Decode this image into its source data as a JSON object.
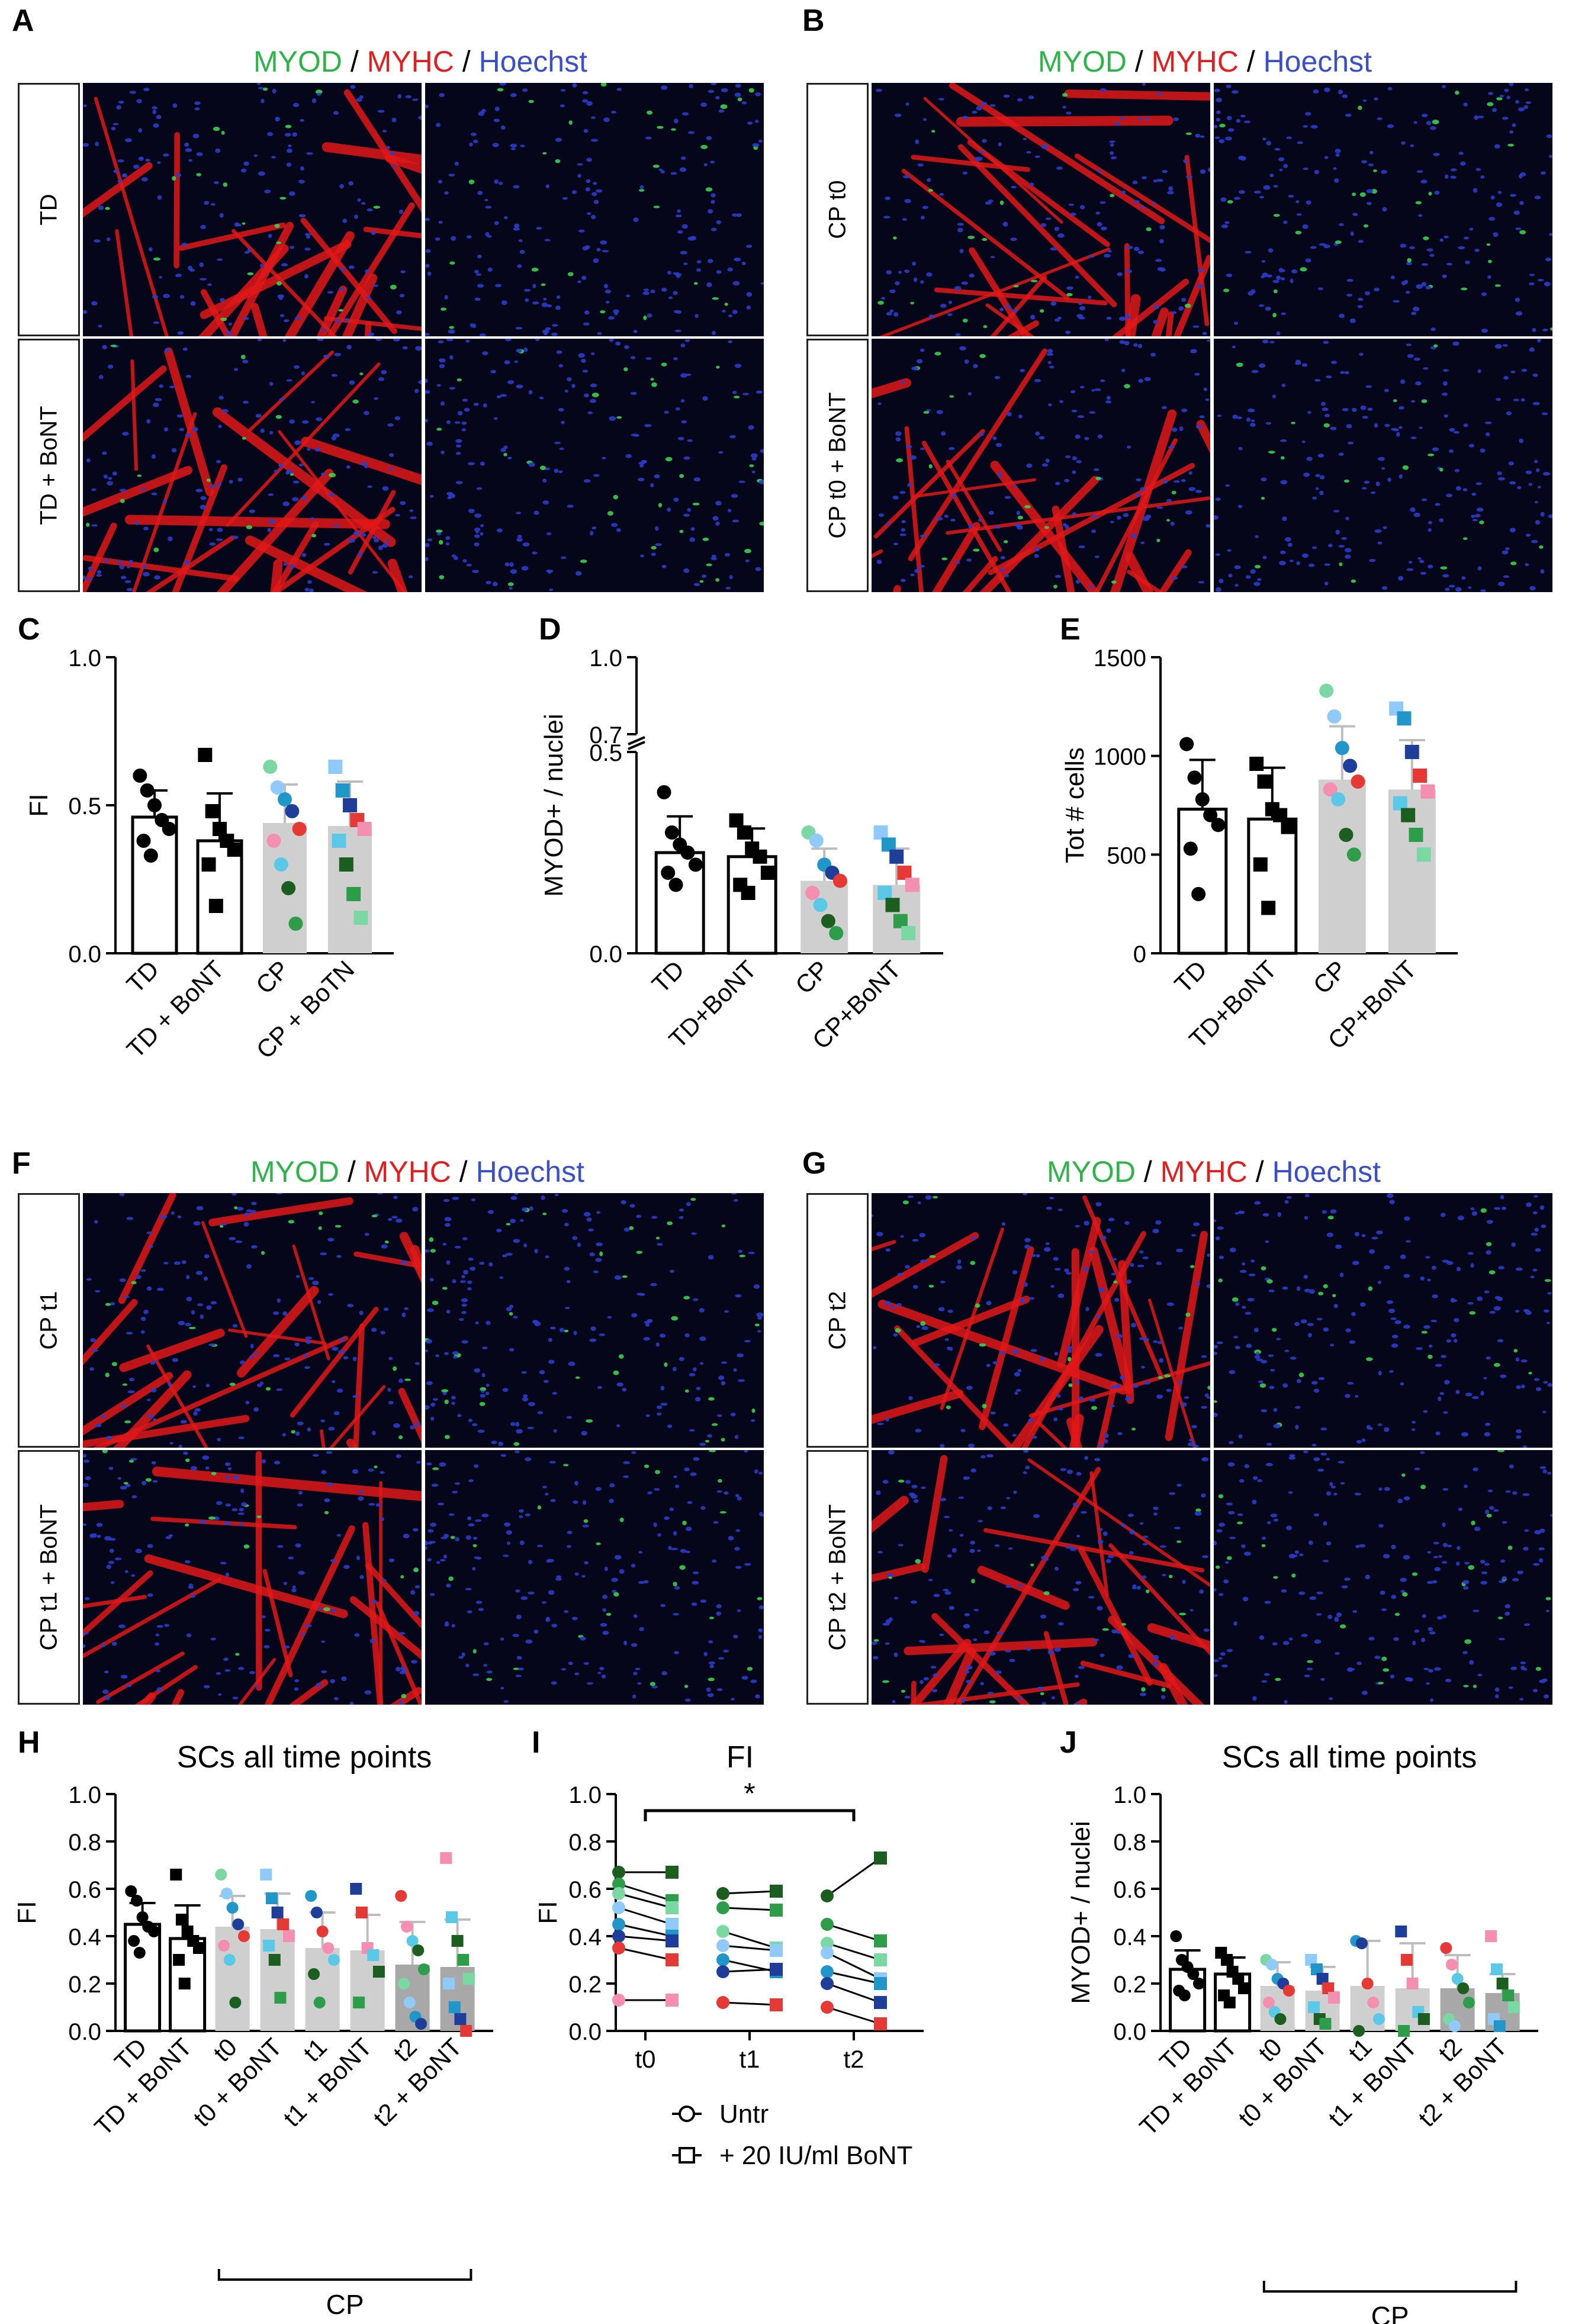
{
  "stain": {
    "part1": "MYOD",
    "sep1": " / ",
    "part2": "MYHC",
    "sep2": " / ",
    "part3": "Hoechst"
  },
  "panels": {
    "A": {
      "letter": "A",
      "rows": [
        "TD",
        "TD + BoNT"
      ]
    },
    "B": {
      "letter": "B",
      "rows": [
        "CP t0",
        "CP t0 + BoNT"
      ]
    },
    "F": {
      "letter": "F",
      "rows": [
        "CP t1",
        "CP t1 + BoNT"
      ]
    },
    "G": {
      "letter": "G",
      "rows": [
        "CP t2",
        "CP t2 + BoNT"
      ]
    }
  },
  "colors": {
    "black": "#000000",
    "grey": "#cfcfcf",
    "darkgrey": "#a8a8a8",
    "myhc_red": "#e01818",
    "nuclei_blue": "#2a3cc8",
    "myod_green": "#39d050"
  },
  "chart_data": [
    {
      "id": "C",
      "letter": "C",
      "type": "bar",
      "title": "",
      "ylabel": "FI",
      "xlabel": "",
      "ylim": [
        0,
        1.0
      ],
      "yticks": [
        "0.0",
        "0.5",
        "1.0"
      ],
      "categories": [
        "TD",
        "TD + BoNT",
        "CP",
        "CP + BoTN"
      ],
      "values": [
        0.46,
        0.38,
        0.44,
        0.43
      ],
      "errors": [
        0.09,
        0.16,
        0.13,
        0.15
      ],
      "points": [
        [
          0.6,
          0.55,
          0.5,
          0.45,
          0.42,
          0.38,
          0.33
        ],
        [
          0.67,
          0.48,
          0.42,
          0.38,
          0.35,
          0.3,
          0.16
        ],
        [
          0.63,
          0.56,
          0.52,
          0.48,
          0.42,
          0.38,
          0.3,
          0.22,
          0.1
        ],
        [
          0.63,
          0.55,
          0.5,
          0.45,
          0.42,
          0.38,
          0.3,
          0.2,
          0.12
        ]
      ]
    },
    {
      "id": "D",
      "letter": "D",
      "type": "bar",
      "title": "",
      "ylabel": "MYOD+ / nuclei",
      "xlabel": "",
      "ylim": [
        0,
        1.0
      ],
      "axis_break": [
        0.5,
        0.7
      ],
      "yticks": [
        "0.0",
        "0.5",
        "0.7",
        "1.0"
      ],
      "categories": [
        "TD",
        "TD+BoNT",
        "CP",
        "CP+BoNT"
      ],
      "values": [
        0.25,
        0.24,
        0.18,
        0.17
      ],
      "errors": [
        0.09,
        0.07,
        0.08,
        0.09
      ],
      "points": [
        [
          0.4,
          0.3,
          0.27,
          0.25,
          0.22,
          0.2,
          0.17
        ],
        [
          0.33,
          0.3,
          0.26,
          0.24,
          0.2,
          0.17,
          0.15
        ],
        [
          0.3,
          0.28,
          0.22,
          0.2,
          0.18,
          0.15,
          0.12,
          0.08,
          0.05
        ],
        [
          0.3,
          0.27,
          0.24,
          0.2,
          0.17,
          0.15,
          0.12,
          0.08,
          0.05
        ]
      ]
    },
    {
      "id": "E",
      "letter": "E",
      "type": "bar",
      "title": "",
      "ylabel": "Tot # cells",
      "xlabel": "",
      "ylim": [
        0,
        1500
      ],
      "yticks": [
        "0",
        "500",
        "1000",
        "1500"
      ],
      "categories": [
        "TD",
        "TD+BoNT",
        "CP",
        "CP+BoNT"
      ],
      "values": [
        730,
        680,
        880,
        830
      ],
      "errors": [
        250,
        260,
        270,
        250
      ],
      "points": [
        [
          1060,
          890,
          780,
          700,
          650,
          530,
          300
        ],
        [
          960,
          870,
          730,
          700,
          640,
          450,
          230
        ],
        [
          1330,
          1200,
          1040,
          950,
          870,
          830,
          780,
          600,
          500
        ],
        [
          1240,
          1190,
          1020,
          900,
          820,
          760,
          700,
          600,
          500
        ]
      ]
    },
    {
      "id": "H",
      "letter": "H",
      "type": "bar",
      "title": "SCs all time points",
      "ylabel": "FI",
      "xlabel": "CP",
      "ylim": [
        0,
        1.0
      ],
      "yticks": [
        "0.0",
        "0.2",
        "0.4",
        "0.6",
        "0.8",
        "1.0"
      ],
      "categories": [
        "TD",
        "TD + BoNT",
        "t0",
        "t0 + BoNT",
        "t1",
        "t1 + BoNT",
        "t2",
        "t2 + BoNT"
      ],
      "values": [
        0.45,
        0.39,
        0.44,
        0.43,
        0.35,
        0.34,
        0.28,
        0.27
      ],
      "errors": [
        0.09,
        0.14,
        0.13,
        0.15,
        0.15,
        0.15,
        0.18,
        0.2
      ],
      "points": [
        [
          0.59,
          0.55,
          0.48,
          0.44,
          0.42,
          0.38,
          0.33
        ],
        [
          0.66,
          0.47,
          0.42,
          0.38,
          0.35,
          0.3,
          0.2
        ],
        [
          0.66,
          0.58,
          0.52,
          0.45,
          0.4,
          0.36,
          0.3,
          0.12
        ],
        [
          0.66,
          0.56,
          0.5,
          0.45,
          0.4,
          0.36,
          0.3,
          0.14
        ],
        [
          0.57,
          0.5,
          0.42,
          0.35,
          0.3,
          0.24,
          0.12
        ],
        [
          0.6,
          0.5,
          0.35,
          0.32,
          0.25,
          0.12
        ],
        [
          0.57,
          0.44,
          0.38,
          0.34,
          0.26,
          0.2,
          0.12,
          0.06,
          0.03
        ],
        [
          0.73,
          0.48,
          0.38,
          0.3,
          0.22,
          0.2,
          0.1,
          0.05,
          0.0
        ]
      ]
    },
    {
      "id": "I",
      "letter": "I",
      "type": "line",
      "title": "FI",
      "ylabel": "FI",
      "xlabel": "",
      "ylim": [
        0,
        1.0
      ],
      "yticks": [
        "0.0",
        "0.2",
        "0.4",
        "0.6",
        "0.8",
        "1.0"
      ],
      "categories": [
        "t0",
        "t1",
        "t2"
      ],
      "significance": {
        "from": "t0",
        "to": "t2",
        "label": "*",
        "y": 0.93
      },
      "series": [
        {
          "name": "Untr",
          "marker": "circle"
        },
        {
          "name": "+ 20 IU/ml BoNT",
          "marker": "square"
        }
      ],
      "pairs": [
        [
          [
            0.67,
            0.67
          ],
          [
            0.58,
            0.59
          ],
          [
            0.57,
            0.73
          ]
        ],
        [
          [
            0.62,
            0.55
          ],
          [
            0.52,
            0.51
          ],
          [
            0.45,
            0.38
          ]
        ],
        [
          [
            0.58,
            0.52
          ],
          [
            0.42,
            0.35
          ],
          [
            0.37,
            0.3
          ]
        ],
        [
          [
            0.52,
            0.45
          ],
          [
            0.36,
            0.34
          ],
          [
            0.33,
            0.22
          ]
        ],
        [
          [
            0.45,
            0.4
          ],
          [
            0.3,
            0.25
          ],
          [
            0.25,
            0.2
          ]
        ],
        [
          [
            0.4,
            0.38
          ],
          [
            0.25,
            0.26
          ],
          [
            0.2,
            0.12
          ]
        ],
        [
          [
            0.35,
            0.3
          ],
          [
            0.12,
            0.11
          ],
          [
            0.1,
            0.03
          ]
        ],
        [
          [
            0.13,
            0.13
          ]
        ]
      ]
    },
    {
      "id": "J",
      "letter": "J",
      "type": "bar",
      "title": "SCs all time points",
      "ylabel": "MYOD+ / nuclei",
      "xlabel": "CP",
      "ylim": [
        0,
        1.0
      ],
      "yticks": [
        "0.0",
        "0.2",
        "0.4",
        "0.6",
        "0.8",
        "1.0"
      ],
      "categories": [
        "TD",
        "TD + BoNT",
        "t0",
        "t0 + BoNT",
        "t1",
        "t1 + BoNT",
        "t2",
        "t2 + BoNT"
      ],
      "values": [
        0.26,
        0.24,
        0.19,
        0.17,
        0.19,
        0.18,
        0.18,
        0.16
      ],
      "errors": [
        0.08,
        0.07,
        0.1,
        0.1,
        0.19,
        0.19,
        0.14,
        0.08
      ],
      "points": [
        [
          0.4,
          0.3,
          0.27,
          0.24,
          0.2,
          0.17,
          0.15
        ],
        [
          0.33,
          0.3,
          0.25,
          0.22,
          0.18,
          0.15,
          0.12
        ],
        [
          0.3,
          0.28,
          0.22,
          0.2,
          0.17,
          0.12,
          0.08,
          0.05
        ],
        [
          0.3,
          0.26,
          0.22,
          0.18,
          0.14,
          0.1,
          0.05,
          0.03
        ],
        [
          0.38,
          0.37,
          0.2,
          0.12,
          0.05,
          0.0
        ],
        [
          0.42,
          0.3,
          0.2,
          0.08,
          0.05,
          0.0
        ],
        [
          0.35,
          0.28,
          0.22,
          0.18,
          0.12,
          0.05,
          0.02
        ],
        [
          0.4,
          0.26,
          0.2,
          0.15,
          0.1,
          0.05,
          0.02
        ]
      ]
    }
  ]
}
